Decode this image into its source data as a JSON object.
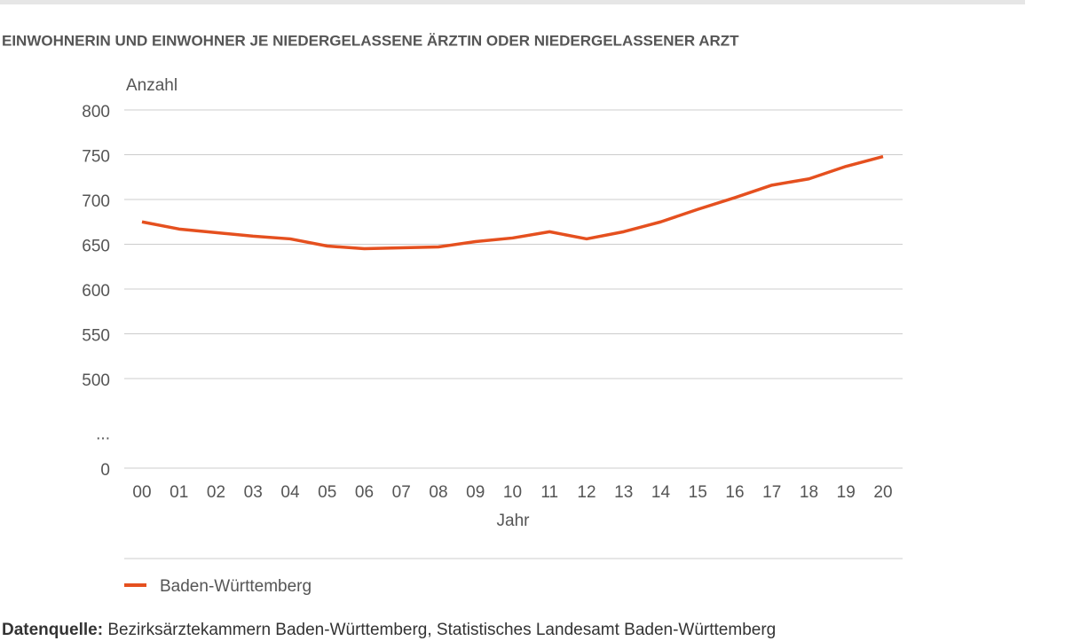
{
  "chart_data": {
    "type": "line",
    "title": "EINWOHNERIN UND EINWOHNER JE NIEDERGELASSENE ÄRZTIN ODER NIEDERGELASSENER ARZT",
    "y_label": "Anzahl",
    "x_label": "Jahr",
    "categories": [
      "00",
      "01",
      "02",
      "03",
      "04",
      "05",
      "06",
      "07",
      "08",
      "09",
      "10",
      "11",
      "12",
      "13",
      "14",
      "15",
      "16",
      "17",
      "18",
      "19",
      "20"
    ],
    "series": [
      {
        "name": "Baden-Württemberg",
        "color": "#e5501f",
        "values": [
          675,
          667,
          663,
          659,
          656,
          648,
          645,
          646,
          647,
          653,
          657,
          664,
          656,
          664,
          675,
          689,
          702,
          716,
          723,
          737,
          748
        ]
      }
    ],
    "ylim": [
      0,
      800
    ],
    "axis_break": true,
    "yticks": [
      0,
      {
        "value": null,
        "label": "..."
      },
      500,
      550,
      600,
      650,
      700,
      750,
      800
    ],
    "grid": true,
    "source_label": "Datenquelle:",
    "source": "Bezirksärztekammern Baden-Württemberg, Statistisches Landesamt Baden-Württemberg"
  }
}
